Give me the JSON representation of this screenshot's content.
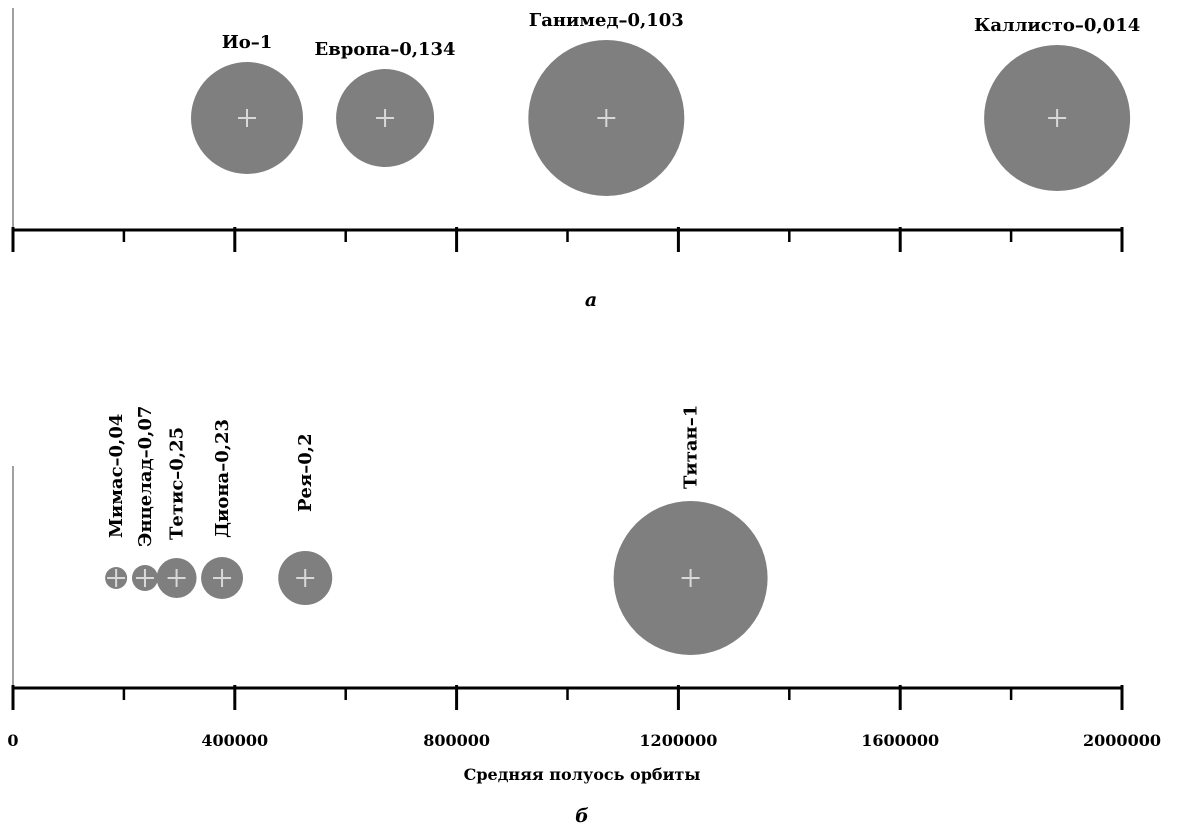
{
  "chart_data": [
    {
      "type": "scatter",
      "panel_label": "а",
      "xlim": [
        0,
        2000000
      ],
      "bubble_color": "#7f7f7f",
      "marker_color": "#d9d9d9",
      "points": [
        {
          "label": "Ио–1",
          "x": 422000,
          "size": 1
        },
        {
          "label": "Европа–0,134",
          "x": 671000,
          "size": 0.134
        },
        {
          "label": "Ганимед–0,103",
          "x": 1070000,
          "size": 0.103
        },
        {
          "label": "Каллисто–0,014",
          "x": 1883000,
          "size": 0.014
        }
      ]
    },
    {
      "type": "scatter",
      "panel_label": "б",
      "xlabel": "Средняя полуось орбиты",
      "xlim": [
        0,
        2000000
      ],
      "xticks": [
        "0",
        "400000",
        "800000",
        "1200000",
        "1600000",
        "2000000"
      ],
      "bubble_color": "#7f7f7f",
      "marker_color": "#d9d9d9",
      "points": [
        {
          "label": "Мимас–0,04",
          "x": 186000,
          "size": 0.04
        },
        {
          "label": "Энцелад–0,07",
          "x": 238000,
          "size": 0.07
        },
        {
          "label": "Тетис–0,25",
          "x": 295000,
          "size": 0.25
        },
        {
          "label": "Диона–0,23",
          "x": 377000,
          "size": 0.23
        },
        {
          "label": "Рея–0,2",
          "x": 527000,
          "size": 0.2
        },
        {
          "label": "Титан–1",
          "x": 1222000,
          "size": 1
        }
      ]
    }
  ]
}
